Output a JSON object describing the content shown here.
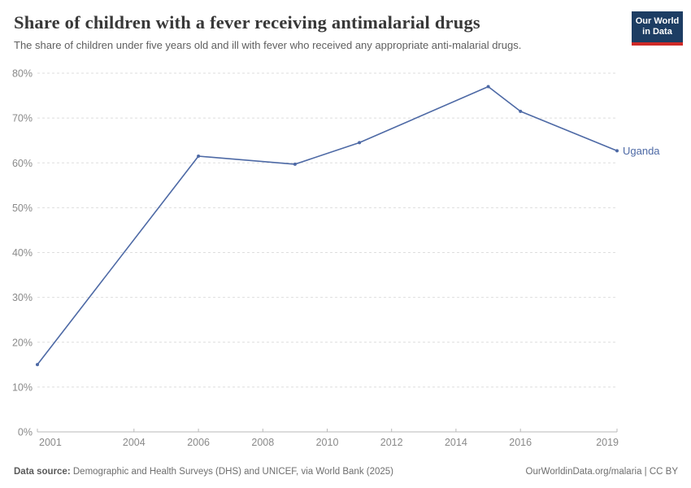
{
  "header": {
    "title": "Share of children with a fever receiving antimalarial drugs",
    "subtitle": "The share of children under five years old and ill with fever who received any appropriate anti-malarial drugs.",
    "logo": {
      "line1": "Our World",
      "line2": "in Data",
      "bg_color": "#1d3d63",
      "bar_color": "#cf2a27"
    }
  },
  "chart_data": {
    "type": "line",
    "title": "Share of children with a fever receiving antimalarial drugs",
    "xlabel": "",
    "ylabel": "",
    "xlim": [
      2001,
      2019
    ],
    "ylim": [
      0,
      80
    ],
    "x_ticks": [
      2001,
      2004,
      2006,
      2008,
      2010,
      2012,
      2014,
      2016,
      2019
    ],
    "y_ticks": [
      0,
      10,
      20,
      30,
      40,
      50,
      60,
      70,
      80
    ],
    "y_tick_suffix": "%",
    "grid": "horizontal-dashed",
    "grid_color": "#dedede",
    "axis_color": "#b9b9b9",
    "tick_label_color": "#8a8a8a",
    "legend_position": "end-of-line-label",
    "series": [
      {
        "name": "Uganda",
        "color": "#4d69a5",
        "x": [
          2001,
          2006,
          2009,
          2011,
          2015,
          2016,
          2019
        ],
        "values": [
          15.0,
          61.5,
          59.7,
          64.5,
          77.0,
          71.5,
          62.7
        ]
      }
    ]
  },
  "footer": {
    "source_label": "Data source:",
    "source_text": " Demographic and Health Surveys (DHS) and UNICEF, via World Bank (2025)",
    "rights": "OurWorldinData.org/malaria | CC BY"
  }
}
